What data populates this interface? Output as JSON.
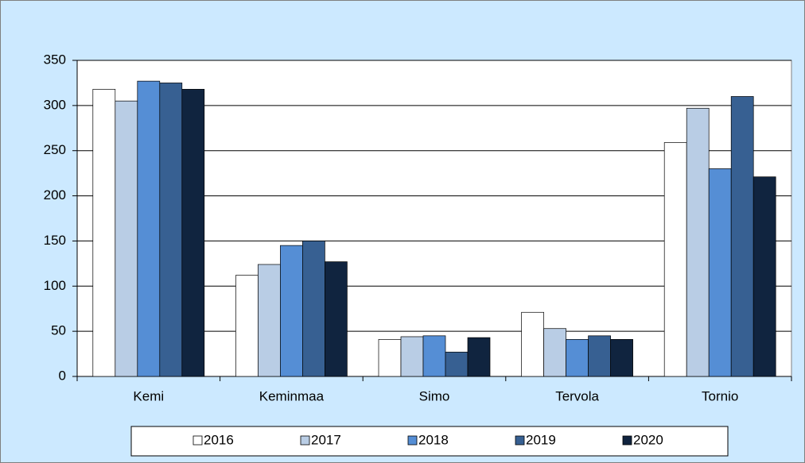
{
  "chart_data": {
    "type": "bar",
    "categories": [
      "Kemi",
      "Keminmaa",
      "Simo",
      "Tervola",
      "Tornio"
    ],
    "series": [
      {
        "name": "2016",
        "color": "#ffffff",
        "values": [
          318,
          112,
          41,
          71,
          259
        ]
      },
      {
        "name": "2017",
        "color": "#b9cde5",
        "values": [
          305,
          124,
          44,
          53,
          297
        ]
      },
      {
        "name": "2018",
        "color": "#558ed5",
        "values": [
          327,
          145,
          45,
          41,
          230
        ]
      },
      {
        "name": "2019",
        "color": "#376092",
        "values": [
          325,
          150,
          27,
          45,
          310
        ]
      },
      {
        "name": "2020",
        "color": "#10243f",
        "values": [
          318,
          127,
          43,
          41,
          221
        ]
      }
    ],
    "ylim": [
      0,
      350
    ],
    "yticks": [
      0,
      50,
      100,
      150,
      200,
      250,
      300,
      350
    ],
    "grid": true,
    "legend": "bottom"
  }
}
